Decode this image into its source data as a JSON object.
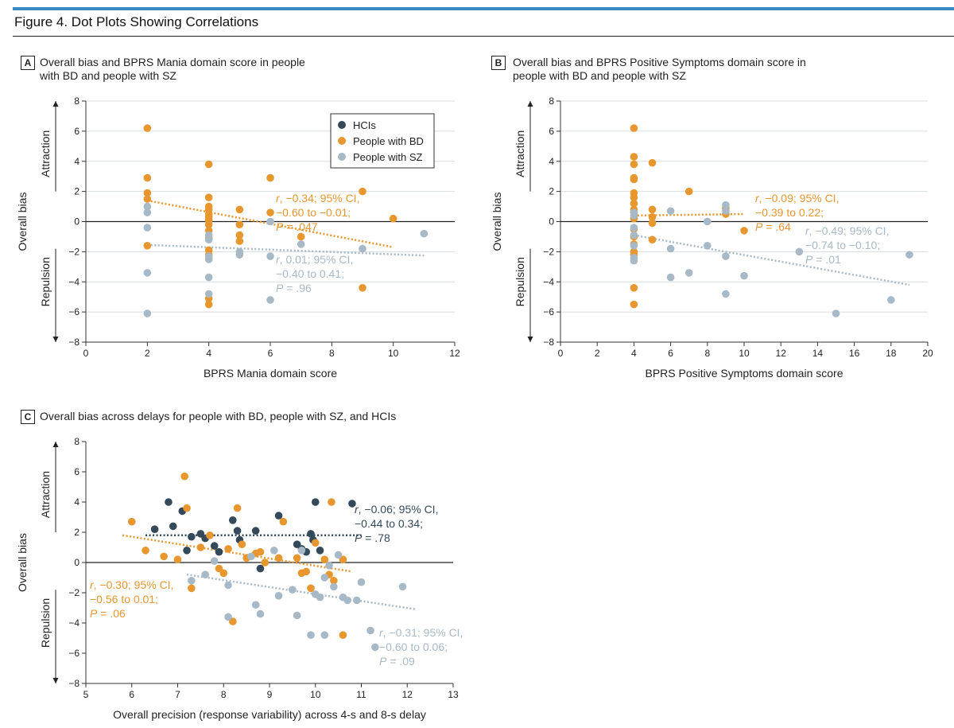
{
  "figure_title": "Figure 4. Dot Plots Showing Correlations",
  "legend": [
    {
      "label": "HCIs",
      "color": "#34495a"
    },
    {
      "label": "People with BD",
      "color": "#e8962e"
    },
    {
      "label": "People with SZ",
      "color": "#a7b9c6"
    }
  ],
  "chart_data": [
    {
      "type": "scatter",
      "panel": "A",
      "title_lines": [
        "Overall bias and BPRS Mania domain score in people",
        "with BD and people with SZ"
      ],
      "xlabel": "BPRS Mania domain score",
      "ylabel": "Overall bias",
      "up_label": "Attraction",
      "down_label": "Repulsion",
      "xlim": [
        0,
        12
      ],
      "xticks": [
        0,
        2,
        4,
        6,
        8,
        10,
        12
      ],
      "ylim": [
        -8,
        8
      ],
      "yticks": [
        -8,
        -6,
        -4,
        -2,
        0,
        2,
        4,
        6,
        8
      ],
      "grid": true,
      "legend_position": "top-right",
      "series": [
        {
          "name": "People with BD",
          "color": "#e8962e",
          "points": [
            [
              2,
              6.2
            ],
            [
              2,
              2.9
            ],
            [
              2,
              1.9
            ],
            [
              2,
              1.5
            ],
            [
              2,
              -1.6
            ],
            [
              4,
              3.8
            ],
            [
              4,
              1.6
            ],
            [
              4,
              1.0
            ],
            [
              4,
              0.8
            ],
            [
              4,
              0.5
            ],
            [
              4,
              0.3
            ],
            [
              4,
              0.1
            ],
            [
              4,
              -0.2
            ],
            [
              4,
              -0.6
            ],
            [
              4,
              -1.1
            ],
            [
              4,
              -1.9
            ],
            [
              4,
              -2.2
            ],
            [
              4,
              -2.5
            ],
            [
              4,
              -5.1
            ],
            [
              4,
              -5.5
            ],
            [
              5,
              0.8
            ],
            [
              5,
              -0.2
            ],
            [
              5,
              -0.9
            ],
            [
              5,
              -1.3
            ],
            [
              6,
              2.9
            ],
            [
              6,
              0.6
            ],
            [
              7,
              -1.0
            ],
            [
              9,
              2.0
            ],
            [
              9,
              -4.4
            ],
            [
              10,
              0.2
            ]
          ],
          "fit": [
            [
              2,
              1.4
            ],
            [
              10,
              -1.7
            ]
          ],
          "stat_lines": [
            {
              "r": "r",
              "rest": ", −0.34; 95% CI,"
            },
            {
              "r": "",
              "rest": "−0.60 to −0.01; "
            },
            {
              "r": "",
              "rest": "P = .047"
            }
          ]
        },
        {
          "name": "People with SZ",
          "color": "#a7b9c6",
          "points": [
            [
              2,
              1.0
            ],
            [
              2,
              0.6
            ],
            [
              2,
              -0.4
            ],
            [
              2,
              -3.4
            ],
            [
              2,
              -6.1
            ],
            [
              4,
              -0.9
            ],
            [
              4,
              -1.2
            ],
            [
              4,
              -2.3
            ],
            [
              4,
              -2.5
            ],
            [
              4,
              -3.7
            ],
            [
              4,
              -4.8
            ],
            [
              5,
              -2.0
            ],
            [
              5,
              -2.2
            ],
            [
              6,
              0.0
            ],
            [
              6,
              -2.3
            ],
            [
              6,
              -5.2
            ],
            [
              7,
              -1.5
            ],
            [
              9,
              -1.8
            ],
            [
              11,
              -0.8
            ]
          ],
          "fit": [
            [
              2,
              -1.55
            ],
            [
              11,
              -2.25
            ]
          ]
        }
      ],
      "annotations": [
        {
          "color": "#e8962e",
          "lines": [
            [
              "r",
              ", −0.34; 95% CI,"
            ],
            [
              "",
              "−0.60 to −0.01; "
            ],
            [
              "P",
              " = .047"
            ]
          ]
        },
        {
          "color": "#a7b9c6",
          "lines": [
            [
              "r",
              ", 0.01; 95% CI,"
            ],
            [
              "",
              "−0.40 to 0.41; "
            ],
            [
              "P",
              " = .96"
            ]
          ]
        }
      ]
    },
    {
      "type": "scatter",
      "panel": "B",
      "title_lines": [
        "Overall bias and BPRS Positive Symptoms domain score in",
        "people with BD and people with SZ"
      ],
      "xlabel": "BPRS Positive Symptoms domain score",
      "ylabel": "Overall bias",
      "up_label": "Attraction",
      "down_label": "Repulsion",
      "xlim": [
        0,
        20
      ],
      "xticks": [
        0,
        2,
        4,
        6,
        8,
        10,
        12,
        14,
        16,
        18,
        20
      ],
      "ylim": [
        -8,
        8
      ],
      "yticks": [
        -8,
        -6,
        -4,
        -2,
        0,
        2,
        4,
        6,
        8
      ],
      "grid": true,
      "series": [
        {
          "name": "People with BD",
          "color": "#e8962e",
          "points": [
            [
              4,
              6.2
            ],
            [
              4,
              4.3
            ],
            [
              4,
              3.8
            ],
            [
              4,
              2.9
            ],
            [
              4,
              2.8
            ],
            [
              4,
              1.9
            ],
            [
              4,
              1.6
            ],
            [
              4,
              1.2
            ],
            [
              4,
              0.8
            ],
            [
              4,
              0.6
            ],
            [
              4,
              0.2
            ],
            [
              4,
              -0.5
            ],
            [
              4,
              -1.0
            ],
            [
              4,
              -1.5
            ],
            [
              4,
              -2.0
            ],
            [
              4,
              -2.2
            ],
            [
              4,
              -4.4
            ],
            [
              4,
              -5.5
            ],
            [
              5,
              3.9
            ],
            [
              5,
              0.8
            ],
            [
              5,
              0.3
            ],
            [
              5,
              -0.1
            ],
            [
              5,
              -1.2
            ],
            [
              7,
              2.0
            ],
            [
              9,
              0.9
            ],
            [
              9,
              0.5
            ],
            [
              10,
              -0.6
            ]
          ],
          "fit": [
            [
              4,
              0.4
            ],
            [
              10,
              0.5
            ]
          ]
        },
        {
          "name": "People with SZ",
          "color": "#a7b9c6",
          "points": [
            [
              4,
              0.6
            ],
            [
              4,
              0.4
            ],
            [
              4,
              -0.4
            ],
            [
              4,
              -0.9
            ],
            [
              4,
              -1.6
            ],
            [
              4,
              -2.4
            ],
            [
              4,
              -2.6
            ],
            [
              6,
              0.7
            ],
            [
              6,
              -1.8
            ],
            [
              6,
              -3.7
            ],
            [
              7,
              -3.4
            ],
            [
              8,
              0.0
            ],
            [
              8,
              -1.6
            ],
            [
              9,
              1.1
            ],
            [
              9,
              0.7
            ],
            [
              9,
              -2.3
            ],
            [
              9,
              -4.8
            ],
            [
              10,
              -3.6
            ],
            [
              13,
              -2.0
            ],
            [
              15,
              -6.1
            ],
            [
              18,
              -5.2
            ],
            [
              19,
              -2.2
            ]
          ],
          "fit": [
            [
              4,
              -0.9
            ],
            [
              19,
              -4.2
            ]
          ]
        }
      ],
      "annotations": [
        {
          "color": "#e8962e",
          "lines": [
            [
              "r",
              ", −0.09; 95% CI,"
            ],
            [
              "",
              "−0.39 to 0.22; "
            ],
            [
              "P",
              " = .64"
            ]
          ]
        },
        {
          "color": "#a7b9c6",
          "lines": [
            [
              "r",
              ", −0.49; 95% CI,"
            ],
            [
              "",
              "−0.74 to −0.10; "
            ],
            [
              "P",
              " = .01"
            ]
          ]
        }
      ]
    },
    {
      "type": "scatter",
      "panel": "C",
      "title_lines": [
        "Overall bias across delays for people with BD, people with SZ, and HCIs"
      ],
      "xlabel": "Overall precision (response variability) across 4-s and 8-s delay",
      "ylabel": "Overall bias",
      "up_label": "Attraction",
      "down_label": "Repulsion",
      "xlim": [
        5,
        13
      ],
      "xticks": [
        5,
        6,
        7,
        8,
        9,
        10,
        11,
        12,
        13
      ],
      "ylim": [
        -8,
        8
      ],
      "yticks": [
        -8,
        -6,
        -4,
        -2,
        0,
        2,
        4,
        6,
        8
      ],
      "grid": false,
      "series": [
        {
          "name": "HCIs",
          "color": "#34495a",
          "points": [
            [
              6.5,
              2.2
            ],
            [
              6.8,
              4.0
            ],
            [
              6.9,
              2.4
            ],
            [
              7.1,
              3.4
            ],
            [
              7.2,
              0.8
            ],
            [
              7.3,
              1.7
            ],
            [
              7.5,
              1.9
            ],
            [
              7.6,
              1.6
            ],
            [
              7.8,
              1.1
            ],
            [
              7.9,
              0.7
            ],
            [
              8.2,
              2.8
            ],
            [
              8.3,
              2.1
            ],
            [
              8.35,
              1.5
            ],
            [
              8.7,
              2.1
            ],
            [
              8.8,
              -0.4
            ],
            [
              9.2,
              3.1
            ],
            [
              9.6,
              1.2
            ],
            [
              9.7,
              0.9
            ],
            [
              9.8,
              0.7
            ],
            [
              9.9,
              1.9
            ],
            [
              9.95,
              1.5
            ],
            [
              10.0,
              4.0
            ],
            [
              10.1,
              0.8
            ],
            [
              10.8,
              3.9
            ]
          ],
          "fit": [
            [
              6.3,
              1.8
            ],
            [
              11.0,
              1.8
            ]
          ]
        },
        {
          "name": "People with BD",
          "color": "#e8962e",
          "points": [
            [
              6.0,
              2.7
            ],
            [
              6.3,
              0.8
            ],
            [
              6.7,
              0.4
            ],
            [
              7.0,
              0.2
            ],
            [
              7.15,
              5.7
            ],
            [
              7.2,
              3.6
            ],
            [
              7.3,
              -1.7
            ],
            [
              7.5,
              1.0
            ],
            [
              7.7,
              1.8
            ],
            [
              7.9,
              -0.4
            ],
            [
              8.0,
              -0.7
            ],
            [
              8.1,
              0.9
            ],
            [
              8.2,
              -3.9
            ],
            [
              8.3,
              3.6
            ],
            [
              8.4,
              1.2
            ],
            [
              8.5,
              0.3
            ],
            [
              8.7,
              0.6
            ],
            [
              8.8,
              0.7
            ],
            [
              8.9,
              0.0
            ],
            [
              9.2,
              0.3
            ],
            [
              9.3,
              2.7
            ],
            [
              9.6,
              0.3
            ],
            [
              9.7,
              -0.7
            ],
            [
              9.8,
              -0.6
            ],
            [
              9.9,
              -1.7
            ],
            [
              10.0,
              1.3
            ],
            [
              10.2,
              0.2
            ],
            [
              10.3,
              -0.8
            ],
            [
              10.35,
              4.0
            ],
            [
              10.4,
              -1.2
            ],
            [
              10.6,
              0.2
            ],
            [
              10.6,
              -4.8
            ]
          ],
          "fit": [
            [
              5.8,
              1.8
            ],
            [
              10.8,
              -0.6
            ]
          ]
        },
        {
          "name": "People with SZ",
          "color": "#a7b9c6",
          "points": [
            [
              7.3,
              -1.2
            ],
            [
              7.6,
              -0.8
            ],
            [
              7.8,
              0.1
            ],
            [
              8.1,
              -3.6
            ],
            [
              8.1,
              -1.5
            ],
            [
              8.6,
              0.4
            ],
            [
              8.7,
              -2.8
            ],
            [
              8.8,
              -3.4
            ],
            [
              9.1,
              0.8
            ],
            [
              9.2,
              -2.2
            ],
            [
              9.5,
              -1.8
            ],
            [
              9.6,
              -3.5
            ],
            [
              9.7,
              0.8
            ],
            [
              9.9,
              -4.8
            ],
            [
              10.0,
              -2.1
            ],
            [
              10.1,
              -2.3
            ],
            [
              10.2,
              -1.0
            ],
            [
              10.2,
              -4.8
            ],
            [
              10.3,
              -0.2
            ],
            [
              10.4,
              -1.6
            ],
            [
              10.5,
              0.5
            ],
            [
              10.6,
              -2.3
            ],
            [
              10.7,
              -2.5
            ],
            [
              10.9,
              -2.5
            ],
            [
              11.0,
              -1.3
            ],
            [
              11.2,
              -4.5
            ],
            [
              11.3,
              -5.6
            ],
            [
              11.9,
              -1.6
            ]
          ],
          "fit": [
            [
              7.2,
              -0.8
            ],
            [
              12.2,
              -3.1
            ]
          ]
        }
      ],
      "annotations": [
        {
          "color": "#34495a",
          "lines": [
            [
              "r",
              ", −0.06; 95% CI,"
            ],
            [
              "",
              "−0.44 to 0.34; "
            ],
            [
              "P",
              " = .78"
            ]
          ]
        },
        {
          "color": "#e8962e",
          "lines": [
            [
              "r",
              ", −0.30; 95% CI,"
            ],
            [
              "",
              "−0.56 to 0.01; "
            ],
            [
              "P",
              " = .06"
            ]
          ]
        },
        {
          "color": "#a7b9c6",
          "lines": [
            [
              "r",
              ", −0.31; 95% CI,"
            ],
            [
              "",
              "−0.60 to 0.06; "
            ],
            [
              "P",
              " = .09"
            ]
          ]
        }
      ]
    }
  ]
}
